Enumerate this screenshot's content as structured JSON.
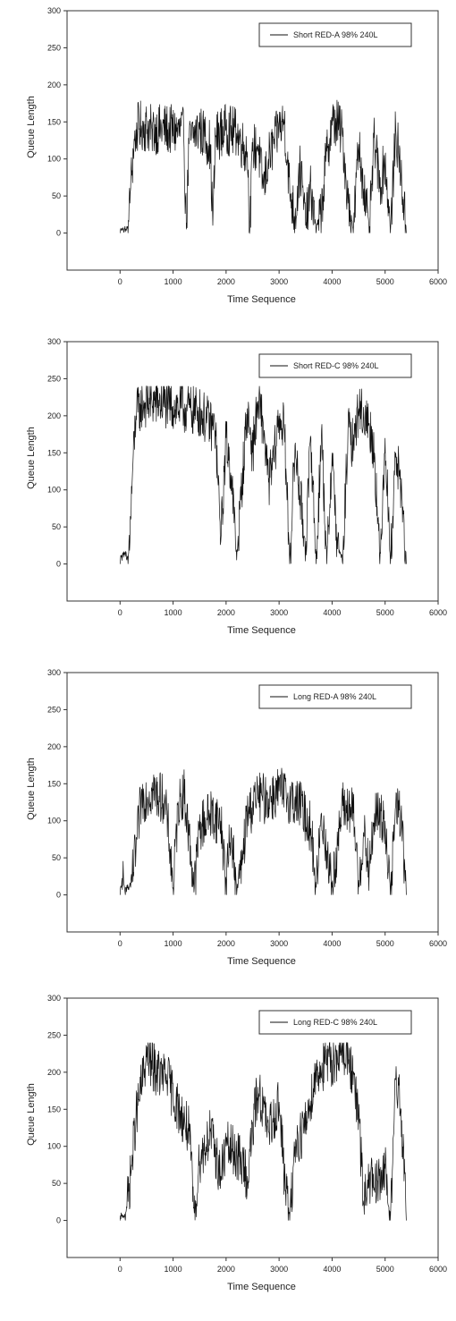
{
  "chart_data": [
    {
      "type": "line",
      "xlabel": "Time Sequence",
      "ylabel": "Queue Length",
      "xlim": [
        -1000,
        6000
      ],
      "ylim": [
        -50,
        300
      ],
      "xticks": [
        0,
        1000,
        2000,
        3000,
        4000,
        5000,
        6000
      ],
      "yticks": [
        0,
        50,
        100,
        150,
        200,
        250,
        300
      ],
      "legend_position": "top-right",
      "series": [
        {
          "name": "Short RED-A 98% 240L",
          "x": [
            0,
            150,
            200,
            250,
            300,
            400,
            600,
            900,
            1200,
            1250,
            1300,
            1400,
            1500,
            1600,
            1700,
            1750,
            1800,
            2000,
            2200,
            2300,
            2400,
            2450,
            2500,
            2600,
            2700,
            2800,
            2900,
            3000,
            3100,
            3200,
            3300,
            3400,
            3500,
            3600,
            3700,
            3800,
            3900,
            4000,
            4100,
            4200,
            4300,
            4400,
            4500,
            4600,
            4700,
            4800,
            4900,
            5000,
            5100,
            5200,
            5300,
            5400
          ],
          "y": [
            0,
            0,
            60,
            110,
            140,
            145,
            140,
            140,
            135,
            5,
            120,
            135,
            140,
            130,
            120,
            10,
            130,
            140,
            135,
            120,
            110,
            5,
            110,
            120,
            60,
            100,
            120,
            140,
            150,
            60,
            20,
            90,
            10,
            60,
            0,
            30,
            110,
            145,
            150,
            130,
            40,
            0,
            120,
            60,
            0,
            130,
            60,
            100,
            0,
            140,
            80,
            0
          ]
        }
      ]
    },
    {
      "type": "line",
      "xlabel": "Time Sequence",
      "ylabel": "Queue Length",
      "xlim": [
        -1000,
        6000
      ],
      "ylim": [
        -50,
        300
      ],
      "xticks": [
        0,
        1000,
        2000,
        3000,
        4000,
        5000,
        6000
      ],
      "yticks": [
        0,
        50,
        100,
        150,
        200,
        250,
        300
      ],
      "legend_position": "top-right",
      "series": [
        {
          "name": "Short RED-C 98% 240L",
          "x": [
            0,
            100,
            150,
            200,
            250,
            300,
            400,
            600,
            900,
            1200,
            1500,
            1800,
            1900,
            2000,
            2100,
            2200,
            2400,
            2500,
            2600,
            2700,
            2800,
            2900,
            3000,
            3100,
            3200,
            3300,
            3500,
            3600,
            3700,
            3800,
            3900,
            4000,
            4100,
            4200,
            4300,
            4400,
            4500,
            4600,
            4700,
            4800,
            4900,
            5000,
            5100,
            5200,
            5300,
            5400
          ],
          "y": [
            0,
            10,
            0,
            60,
            150,
            200,
            215,
            220,
            215,
            210,
            205,
            180,
            30,
            170,
            120,
            5,
            210,
            150,
            220,
            190,
            110,
            140,
            200,
            180,
            0,
            160,
            20,
            170,
            0,
            180,
            0,
            150,
            20,
            0,
            180,
            160,
            210,
            200,
            190,
            150,
            0,
            170,
            0,
            150,
            100,
            0
          ]
        }
      ]
    },
    {
      "type": "line",
      "xlabel": "Time Sequence",
      "ylabel": "Queue Length",
      "xlim": [
        -1000,
        6000
      ],
      "ylim": [
        -50,
        300
      ],
      "xticks": [
        0,
        1000,
        2000,
        3000,
        4000,
        5000,
        6000
      ],
      "yticks": [
        0,
        50,
        100,
        150,
        200,
        250,
        300
      ],
      "legend_position": "top-right",
      "series": [
        {
          "name": "Long RED-A 98% 240L",
          "x": [
            0,
            50,
            100,
            200,
            300,
            400,
            600,
            800,
            900,
            1000,
            1100,
            1200,
            1300,
            1400,
            1500,
            1700,
            1900,
            2000,
            2100,
            2200,
            2300,
            2400,
            2600,
            2800,
            3000,
            3200,
            3400,
            3600,
            3700,
            3800,
            3900,
            4000,
            4200,
            4400,
            4500,
            4600,
            4700,
            4800,
            5000,
            5100,
            5200,
            5300,
            5400
          ],
          "y": [
            0,
            20,
            0,
            10,
            60,
            130,
            140,
            130,
            100,
            10,
            120,
            140,
            80,
            10,
            90,
            110,
            100,
            20,
            90,
            0,
            40,
            110,
            130,
            130,
            140,
            130,
            120,
            90,
            10,
            110,
            60,
            10,
            120,
            110,
            20,
            80,
            30,
            110,
            100,
            0,
            120,
            110,
            0
          ]
        }
      ]
    },
    {
      "type": "line",
      "xlabel": "Time Sequence",
      "ylabel": "Queue Length",
      "xlim": [
        -1000,
        6000
      ],
      "ylim": [
        -50,
        300
      ],
      "xticks": [
        0,
        1000,
        2000,
        3000,
        4000,
        5000,
        6000
      ],
      "yticks": [
        0,
        50,
        100,
        150,
        200,
        250,
        300
      ],
      "legend_position": "top-right",
      "series": [
        {
          "name": "Long RED-C 98% 240L",
          "x": [
            0,
            100,
            200,
            300,
            400,
            500,
            700,
            900,
            1100,
            1300,
            1400,
            1500,
            1700,
            1900,
            2000,
            2200,
            2400,
            2600,
            2800,
            3000,
            3100,
            3200,
            3300,
            3500,
            3700,
            3900,
            4100,
            4300,
            4500,
            4600,
            4700,
            4800,
            5000,
            5100,
            5200,
            5300,
            5400
          ],
          "y": [
            0,
            0,
            60,
            140,
            180,
            220,
            200,
            190,
            150,
            120,
            10,
            80,
            120,
            60,
            100,
            90,
            60,
            180,
            120,
            160,
            60,
            0,
            100,
            130,
            200,
            210,
            220,
            230,
            140,
            20,
            60,
            40,
            70,
            0,
            190,
            150,
            0
          ]
        }
      ]
    }
  ]
}
